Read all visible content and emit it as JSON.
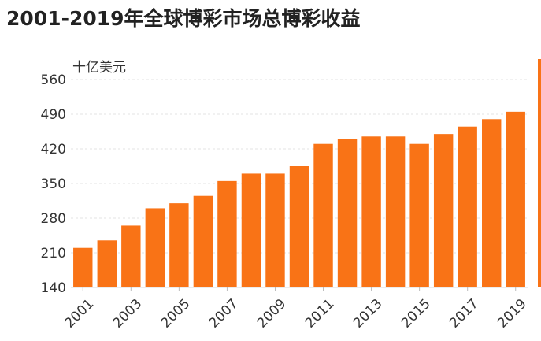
{
  "title": "2001-2019年全球博彩市场总博彩收益",
  "colors": {
    "bar": "#f97316",
    "accent": "#f97316"
  },
  "chart_data": {
    "type": "bar",
    "title": "2001-2019年全球博彩市场总博彩收益",
    "unit_label": "十亿美元",
    "categories": [
      "2001",
      "2002",
      "2003",
      "2004",
      "2005",
      "2006",
      "2007",
      "2008",
      "2009",
      "2010",
      "2011",
      "2012",
      "2013",
      "2014",
      "2015",
      "2016",
      "2017",
      "2018",
      "2019"
    ],
    "values": [
      220,
      235,
      265,
      300,
      310,
      325,
      355,
      370,
      370,
      385,
      430,
      440,
      445,
      445,
      430,
      450,
      465,
      480,
      495
    ],
    "x_tick_labels": [
      "2001",
      "2003",
      "2005",
      "2007",
      "2009",
      "2011",
      "2013",
      "2015",
      "2017",
      "2019"
    ],
    "y_ticks": [
      140,
      210,
      280,
      350,
      420,
      490,
      560
    ],
    "ylim": [
      140,
      560
    ],
    "grid": true,
    "legend": "none"
  }
}
